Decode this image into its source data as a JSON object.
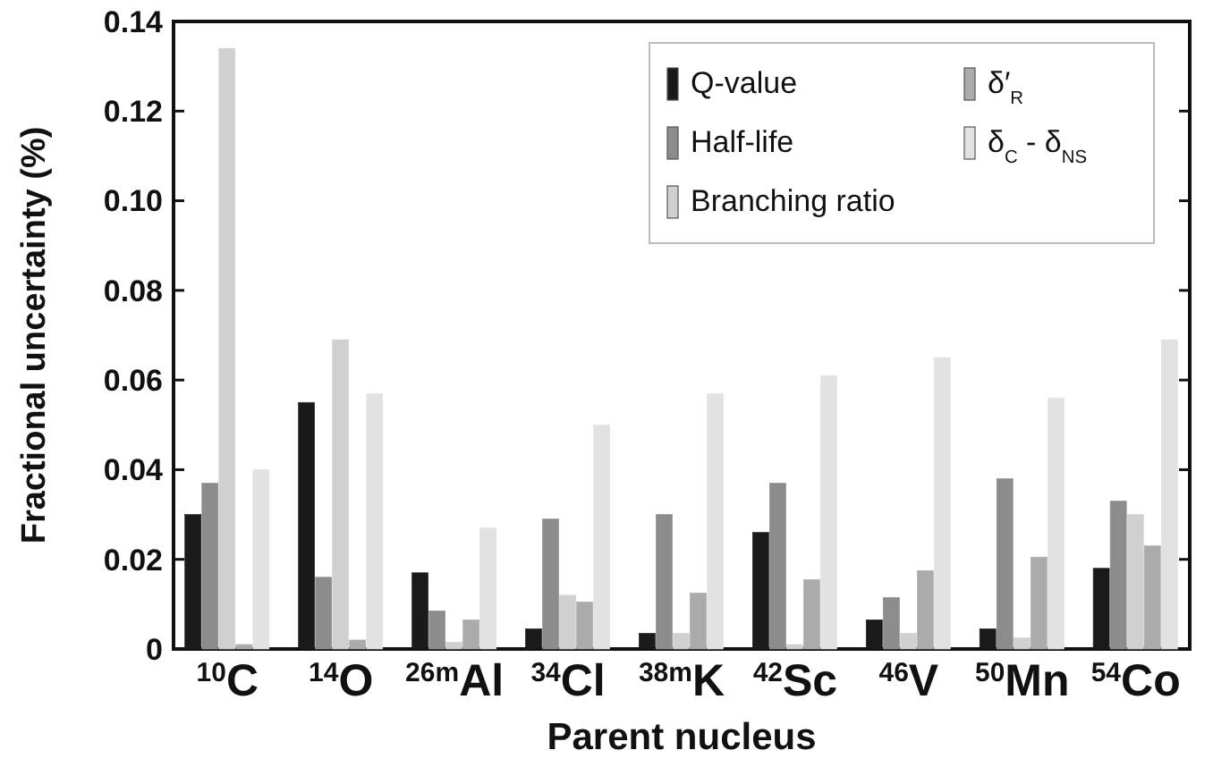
{
  "chart_data": {
    "type": "bar",
    "xlabel": "Parent nucleus",
    "ylabel": "Fractional uncertainty (%)",
    "categories": [
      "$^{10}$C",
      "$^{14}$O",
      "$^{26m}$Al",
      "$^{34}$Cl",
      "$^{38m}$K",
      "$^{42}$Sc",
      "$^{46}$V",
      "$^{50}$Mn",
      "$^{54}$Co"
    ],
    "series": [
      {
        "name": "Q-value",
        "color": "#1a1a1a",
        "values": [
          0.03,
          0.055,
          0.017,
          0.0045,
          0.0035,
          0.026,
          0.0065,
          0.0045,
          0.018
        ]
      },
      {
        "name": "Half-life",
        "color": "#8c8c8c",
        "values": [
          0.037,
          0.016,
          0.0085,
          0.029,
          0.03,
          0.037,
          0.0115,
          0.038,
          0.033
        ]
      },
      {
        "name": "Branching ratio",
        "color": "#d0d0d0",
        "values": [
          0.134,
          0.069,
          0.0015,
          0.012,
          0.0035,
          0.001,
          0.0035,
          0.0025,
          0.03
        ]
      },
      {
        "name": "δ′$_{R}$",
        "color": "#ababab",
        "values": [
          0.001,
          0.002,
          0.0065,
          0.0105,
          0.0125,
          0.0155,
          0.0175,
          0.0205,
          0.023
        ]
      },
      {
        "name": "δ$_{C}$ - δ$_{NS}$",
        "color": "#e2e2e2",
        "values": [
          0.04,
          0.057,
          0.027,
          0.05,
          0.057,
          0.061,
          0.065,
          0.056,
          0.069
        ]
      }
    ],
    "ylim": [
      0,
      0.14
    ],
    "yticks": [
      0,
      {
        "value": 0.02,
        "label": "0.02"
      },
      {
        "value": 0.04,
        "label": "0.04"
      },
      {
        "value": 0.06,
        "label": "0.06"
      },
      {
        "value": 0.08,
        "label": "0.08"
      },
      {
        "value": 0.1,
        "label": "0.10"
      },
      {
        "value": 0.12,
        "label": "0.12"
      },
      {
        "value": 0.14,
        "label": "0.14"
      }
    ],
    "legend": "top right",
    "grid": false
  }
}
